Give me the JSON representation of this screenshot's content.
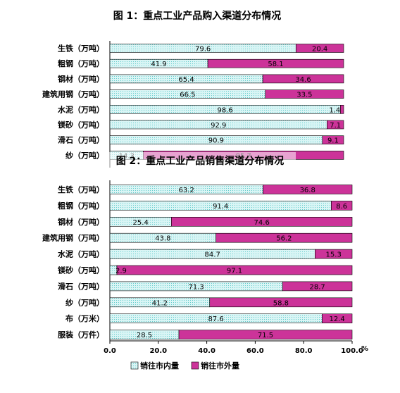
{
  "colors": {
    "inner": "#ccf2f2",
    "outer": "#cc3399",
    "border": "#000000",
    "axis": "#000000"
  },
  "chart_data": [
    {
      "type": "bar",
      "orientation": "horizontal",
      "stacked": true,
      "title": "图 1：重点工业产品购入渠道分布情况",
      "categories": [
        "生铁（万吨）",
        "粗钢（万吨）",
        "钢材（万吨）",
        "建筑用钢（万吨）",
        "水泥（万吨）",
        "镁砂（万吨）",
        "滑石（万吨）",
        "纱（万吨）"
      ],
      "series": [
        {
          "name": "销往市内量",
          "values": [
            79.6,
            41.9,
            65.4,
            66.5,
            98.6,
            92.9,
            90.9,
            14.3
          ]
        },
        {
          "name": "销往市外量",
          "values": [
            20.4,
            58.1,
            34.6,
            33.5,
            1.4,
            7.1,
            9.1,
            85.7
          ]
        }
      ],
      "xlim": [
        0,
        100
      ],
      "partially_obscured": true
    },
    {
      "type": "bar",
      "orientation": "horizontal",
      "stacked": true,
      "title": "图 2：重点工业产品销售渠道分布情况",
      "categories": [
        "生铁（万吨）",
        "粗钢（万吨）",
        "钢材（万吨）",
        "建筑用钢（万吨）",
        "水泥（万吨）",
        "镁砂（万吨）",
        "滑石（万吨）",
        "纱（万吨）",
        "布（万米）",
        "服装（万件）"
      ],
      "series": [
        {
          "name": "销往市内量",
          "values": [
            63.2,
            91.4,
            25.4,
            43.8,
            84.7,
            2.9,
            71.3,
            41.2,
            87.6,
            28.5
          ]
        },
        {
          "name": "销往市外量",
          "values": [
            36.8,
            8.6,
            74.6,
            56.2,
            15.3,
            97.1,
            28.7,
            58.8,
            12.4,
            71.5
          ]
        }
      ],
      "xlim": [
        0,
        100
      ],
      "xticks": [
        "0.0",
        "20.0",
        "40.0",
        "60.0",
        "80.0",
        "100.0"
      ],
      "x_unit": "%",
      "legend": {
        "position": "bottom",
        "items": [
          "销往市内量",
          "销往市外量"
        ]
      }
    }
  ]
}
